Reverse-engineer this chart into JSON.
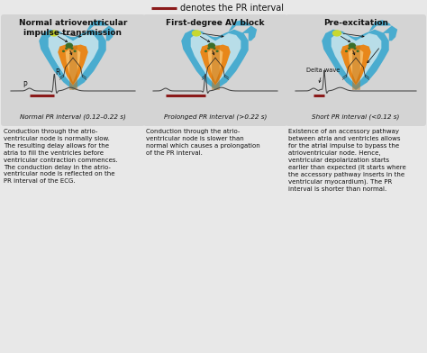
{
  "bg_color": "#e8e8e8",
  "panel_bg": "#d4d4d4",
  "legend_line_color": "#8b1a1a",
  "panel_titles": [
    "Normal atrioventricular\nimpulse transmission",
    "First-degree AV block",
    "Pre-excitation"
  ],
  "pr_labels": [
    "Normal PR interval (0.12–0.22 s)",
    "Prolonged PR interval (>0.22 s)",
    "Short PR interval (<0.12 s)"
  ],
  "descriptions": [
    "Conduction through the atrio-\nventricular node is normally slow.\nThe resulting delay allows for the\natria to fill the ventricles before\nventricular contraction commences.\nThe conduction delay in the atrio-\nventricular node is reflected on the\nPR interval of the ECG.",
    "Conduction through the atrio-\nventricular node is slower than\nnormal which causes a prolongation\nof the PR interval.",
    "Existence of an accessory pathway\nbetween atria and ventricles allows\nfor the atrial impulse to bypass the\natrioventricular node. Hence,\nventricular depolarization starts\nearlier than expected (it starts where\nthe accessory pathway inserts in the\nventricular myocardium). The PR\ninterval is shorter than normal."
  ],
  "legend_text": "denotes the PR interval",
  "heart_blue": "#4aaccf",
  "heart_light_blue": "#b8dde8",
  "heart_orange": "#e8871a",
  "heart_orange_light": "#f5b860",
  "heart_white_inner": "#c5e5ef",
  "node_yellow": "#c8d830",
  "node_green": "#3a6e2a",
  "ecg_color": "#444444",
  "pr_bar_color": "#8b1a1a",
  "delta_wave_label": "Delta wave",
  "p_label": "P",
  "r_label": "R"
}
